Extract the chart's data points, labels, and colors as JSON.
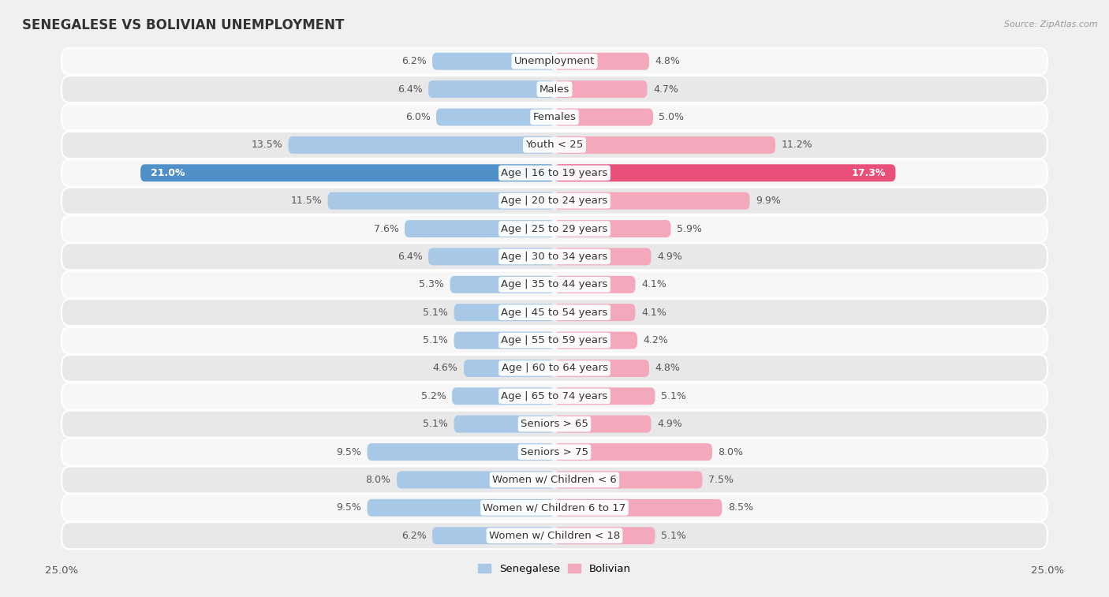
{
  "title": "SENEGALESE VS BOLIVIAN UNEMPLOYMENT",
  "source": "Source: ZipAtlas.com",
  "categories": [
    "Unemployment",
    "Males",
    "Females",
    "Youth < 25",
    "Age | 16 to 19 years",
    "Age | 20 to 24 years",
    "Age | 25 to 29 years",
    "Age | 30 to 34 years",
    "Age | 35 to 44 years",
    "Age | 45 to 54 years",
    "Age | 55 to 59 years",
    "Age | 60 to 64 years",
    "Age | 65 to 74 years",
    "Seniors > 65",
    "Seniors > 75",
    "Women w/ Children < 6",
    "Women w/ Children 6 to 17",
    "Women w/ Children < 18"
  ],
  "senegalese": [
    6.2,
    6.4,
    6.0,
    13.5,
    21.0,
    11.5,
    7.6,
    6.4,
    5.3,
    5.1,
    5.1,
    4.6,
    5.2,
    5.1,
    9.5,
    8.0,
    9.5,
    6.2
  ],
  "bolivian": [
    4.8,
    4.7,
    5.0,
    11.2,
    17.3,
    9.9,
    5.9,
    4.9,
    4.1,
    4.1,
    4.2,
    4.8,
    5.1,
    4.9,
    8.0,
    7.5,
    8.5,
    5.1
  ],
  "senegalese_color": "#a8c8e8",
  "bolivian_color": "#f4a8bc",
  "highlight_senegalese_color": "#5090c8",
  "highlight_bolivian_color": "#e8507a",
  "highlight_row": 4,
  "xlim": 25.0,
  "bg_color": "#f0f0f0",
  "row_color_light": "#f7f7f7",
  "row_color_dark": "#e8e8e8",
  "label_fontsize": 9.5,
  "title_fontsize": 12,
  "value_fontsize": 9
}
